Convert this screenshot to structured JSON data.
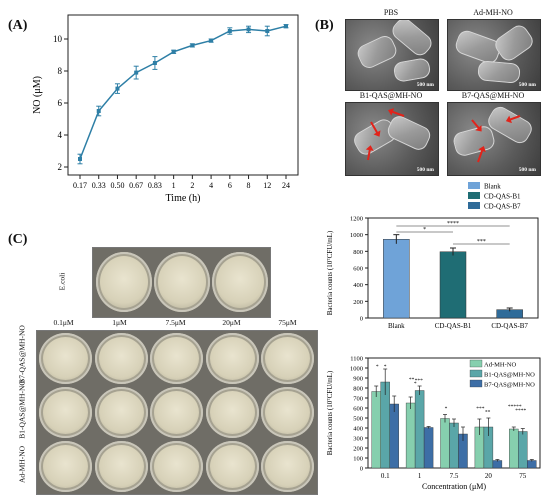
{
  "panel_a": {
    "label": "(A)"
  },
  "panel_b": {
    "label": "(B)",
    "sem": [
      {
        "title": "PBS",
        "scale": "500 nm"
      },
      {
        "title": "Ad-MH-NO",
        "scale": "500 nm"
      },
      {
        "title": "B1-QAS@MH-NO",
        "scale": "500 nm"
      },
      {
        "title": "B7-QAS@MH-NO",
        "scale": "500 nm"
      }
    ]
  },
  "panel_c": {
    "label": "(C)",
    "ecoli_label": "E.coli",
    "col_headers": [
      "0.1μM",
      "1μM",
      "7.5μM",
      "20μM",
      "75μM"
    ],
    "row_labels": [
      "B7-QAS@MH-NO",
      "B1-QAS@MH-NO",
      "Ad-MH-NO"
    ]
  },
  "colors": {
    "line": "#2e7fa6",
    "blank": "#6fa3d8",
    "cd_b1": "#1f6d74",
    "cd_b7": "#2f6b99",
    "ad": "#86cfae",
    "b1": "#5aa6a8",
    "b7": "#3d6ea6"
  },
  "chart_data": [
    {
      "type": "line",
      "xlabel": "Time (h)",
      "ylabel": "NO (μM)",
      "x": [
        "0.17",
        "0.33",
        "0.50",
        "0.67",
        "0.83",
        "1",
        "2",
        "4",
        "6",
        "8",
        "12",
        "24"
      ],
      "y": [
        2.5,
        5.5,
        6.9,
        7.9,
        8.5,
        9.2,
        9.6,
        9.9,
        10.5,
        10.6,
        10.5,
        10.8
      ],
      "err": [
        0.3,
        0.3,
        0.3,
        0.4,
        0.4,
        0.1,
        0.1,
        0.1,
        0.2,
        0.2,
        0.3,
        0.1
      ],
      "yticks": [
        "2",
        "4",
        "6",
        "8",
        "10"
      ],
      "ylim": [
        1.5,
        11.5
      ]
    },
    {
      "type": "bar",
      "ylabel": "Bacteria counts (10⁷CFU/mL)",
      "categories": [
        "Blank",
        "CD-QAS-B1",
        "CD-QAS-B7"
      ],
      "values": [
        945,
        795,
        100
      ],
      "err": [
        55,
        45,
        20
      ],
      "legend": [
        "Blank",
        "CD-QAS-B1",
        "CD-QAS-B7"
      ],
      "yticks": [
        "0",
        "200",
        "400",
        "600",
        "800",
        "1000",
        "1200"
      ],
      "ylim": [
        0,
        1200
      ],
      "significance": [
        {
          "label": "*",
          "from": 0,
          "to": 1
        },
        {
          "label": "****",
          "from": 0,
          "to": 2
        },
        {
          "label": "***",
          "from": 1,
          "to": 2
        }
      ]
    },
    {
      "type": "bar",
      "xlabel": "Concentration (μM)",
      "ylabel": "Bacteria counts (10⁷CFU/mL)",
      "categories": [
        "0.1",
        "1",
        "7.5",
        "20",
        "75"
      ],
      "series": [
        {
          "name": "Ad-MH-NO",
          "values": [
            765,
            650,
            495,
            410,
            390
          ],
          "err": [
            55,
            60,
            40,
            80,
            20
          ]
        },
        {
          "name": "B1-QAS@MH-NO",
          "values": [
            860,
            775,
            450,
            410,
            365
          ],
          "err": [
            130,
            45,
            40,
            90,
            30
          ]
        },
        {
          "name": "B7-QAS@MH-NO",
          "values": [
            640,
            405,
            340,
            75,
            75
          ],
          "err": [
            80,
            10,
            70,
            10,
            10
          ]
        }
      ],
      "yticks": [
        "0",
        "100",
        "200",
        "300",
        "400",
        "500",
        "600",
        "700",
        "800",
        "900",
        "1000",
        "1100"
      ],
      "ylim": [
        0,
        1100
      ],
      "significance_labels": [
        "*",
        "*",
        "**",
        "*",
        "***",
        "*",
        "***",
        "**",
        "*****",
        "****"
      ]
    }
  ]
}
